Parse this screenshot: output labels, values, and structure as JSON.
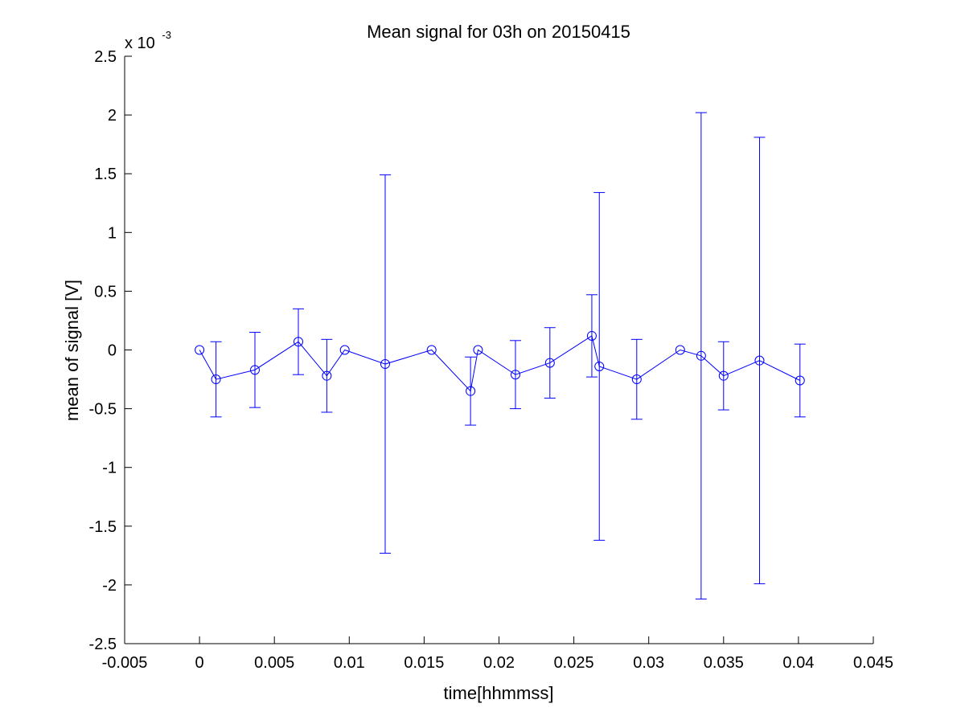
{
  "chart_data": {
    "type": "line",
    "title": "Mean signal for 03h on 20150415",
    "xlabel": "time[hhmmss]",
    "ylabel": "mean of signal [V]",
    "y_multiplier": {
      "base": "x 10",
      "exponent": "-3"
    },
    "xlim": [
      -0.005,
      0.045
    ],
    "ylim": [
      -2.5,
      2.5
    ],
    "x_ticks": [
      -0.005,
      0,
      0.005,
      0.01,
      0.015,
      0.02,
      0.025,
      0.03,
      0.035,
      0.04,
      0.045
    ],
    "x_tick_labels": [
      "-0.005",
      "0",
      "0.005",
      "0.01",
      "0.015",
      "0.02",
      "0.025",
      "0.03",
      "0.035",
      "0.04",
      "0.045"
    ],
    "y_ticks": [
      -2.5,
      -2,
      -1.5,
      -1,
      -0.5,
      0,
      0.5,
      1,
      1.5,
      2,
      2.5
    ],
    "y_tick_labels": [
      "-2.5",
      "-2",
      "-1.5",
      "-1",
      "-0.5",
      "0",
      "0.5",
      "1",
      "1.5",
      "2",
      "2.5"
    ],
    "grid": false,
    "series": [
      {
        "color": "#0000ff",
        "marker": "circle",
        "x": [
          0,
          0.0011,
          0.0037,
          0.0066,
          0.0085,
          0.0097,
          0.0124,
          0.0155,
          0.0181,
          0.0186,
          0.0211,
          0.0234,
          0.0262,
          0.0267,
          0.0292,
          0.0321,
          0.0335,
          0.035,
          0.0374,
          0.0401
        ],
        "y": [
          0,
          -0.25,
          -0.17,
          0.07,
          -0.22,
          0,
          -0.12,
          0,
          -0.35,
          0,
          -0.21,
          -0.11,
          0.12,
          -0.14,
          -0.25,
          0,
          -0.05,
          -0.22,
          -0.09,
          -0.26
        ],
        "err": [
          0,
          0.32,
          0.32,
          0.28,
          0.31,
          0,
          1.61,
          0,
          0.29,
          0,
          0.29,
          0.3,
          0.35,
          1.48,
          0.34,
          0,
          2.07,
          0.29,
          1.9,
          0.31
        ]
      }
    ]
  }
}
